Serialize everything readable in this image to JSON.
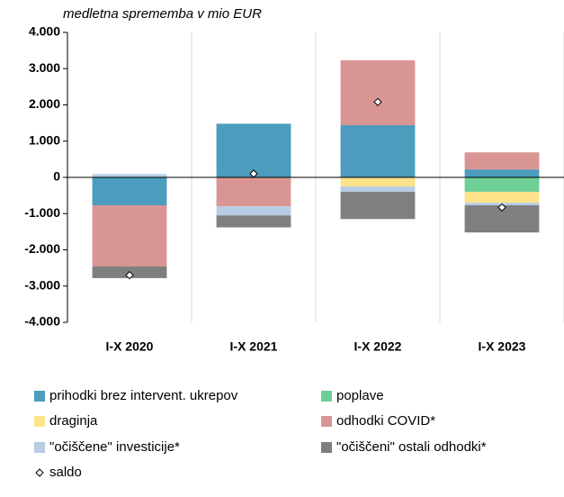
{
  "chart_data": {
    "type": "bar",
    "stacked": true,
    "title": "medletna sprememba v mio EUR",
    "categories": [
      "I-X 2020",
      "I-X 2021",
      "I-X 2022",
      "I-X 2023"
    ],
    "series": [
      {
        "name": "prihodki brez intervent. ukrepov",
        "color": "#4b9cbd",
        "values": [
          -770,
          1480,
          1440,
          220
        ]
      },
      {
        "name": "poplave",
        "color": "#6dcf96",
        "values": [
          0,
          0,
          0,
          -400
        ]
      },
      {
        "name": "draginja",
        "color": "#ffe38a",
        "values": [
          0,
          0,
          -250,
          -300
        ]
      },
      {
        "name": "odhodki COVID*",
        "color": "#d99594",
        "values": [
          -1690,
          -800,
          1790,
          470
        ]
      },
      {
        "name": "\"očiščene\" investicije*",
        "color": "#b8cce4",
        "values": [
          90,
          -250,
          -150,
          -70
        ]
      },
      {
        "name": "\"očiščeni\" ostali odhodki*",
        "color": "#7f7f7f",
        "values": [
          -320,
          -330,
          -750,
          -750
        ]
      }
    ],
    "markers": {
      "name": "saldo",
      "values": [
        -2700,
        100,
        2080,
        -830
      ]
    },
    "ylim": [
      -4000,
      4000
    ],
    "yticks": [
      {
        "value": -4000,
        "label": "-4.000"
      },
      {
        "value": -3000,
        "label": "-3.000"
      },
      {
        "value": -2000,
        "label": "-2.000"
      },
      {
        "value": -1000,
        "label": "-1.000"
      },
      0,
      {
        "value": 1000,
        "label": "1.000"
      },
      {
        "value": 2000,
        "label": "2.000"
      },
      {
        "value": 3000,
        "label": "3.000"
      },
      {
        "value": 4000,
        "label": "4.000"
      }
    ]
  }
}
